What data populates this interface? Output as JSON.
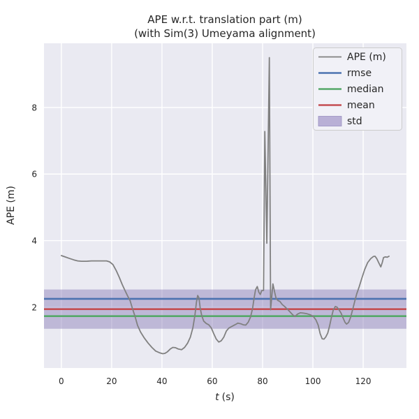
{
  "chart_data": {
    "type": "line",
    "title_line1": "APE w.r.t. translation part (m)",
    "title_line2": "(with Sim(3) Umeyama alignment)",
    "xlabel": "t (s)",
    "xlabel_parts": {
      "variable": "t",
      "unit": "(s)"
    },
    "ylabel": "APE (m)",
    "xlim": [
      -6.9,
      137.2
    ],
    "ylim": [
      0.17,
      9.93
    ],
    "x_ticks": [
      0,
      20,
      40,
      60,
      80,
      100,
      120
    ],
    "y_ticks": [
      2,
      4,
      6,
      8
    ],
    "grid": true,
    "legend_position": "upper right",
    "legend": [
      {
        "label": "APE (m)",
        "type": "line",
        "color": "#808080"
      },
      {
        "label": "rmse",
        "type": "line",
        "color": "#4c72b0"
      },
      {
        "label": "median",
        "type": "line",
        "color": "#55a868"
      },
      {
        "label": "mean",
        "type": "line",
        "color": "#c44e52"
      },
      {
        "label": "std",
        "type": "patch",
        "color": "#b9b0d6"
      }
    ],
    "stats": {
      "rmse": 2.25,
      "mean": 1.94,
      "median": 1.73,
      "std": 0.59
    },
    "series": [
      {
        "name": "APE (m)",
        "color": "#808080",
        "points": [
          [
            0,
            3.55
          ],
          [
            1.5,
            3.51
          ],
          [
            3,
            3.47
          ],
          [
            5,
            3.42
          ],
          [
            6.5,
            3.39
          ],
          [
            8,
            3.38
          ],
          [
            10,
            3.38
          ],
          [
            12,
            3.39
          ],
          [
            14,
            3.39
          ],
          [
            16,
            3.39
          ],
          [
            18,
            3.39
          ],
          [
            19.2,
            3.36
          ],
          [
            20.5,
            3.28
          ],
          [
            21.8,
            3.1
          ],
          [
            23,
            2.9
          ],
          [
            24.2,
            2.68
          ],
          [
            25.3,
            2.5
          ],
          [
            26.4,
            2.33
          ],
          [
            27.3,
            2.2
          ],
          [
            28.3,
            1.95
          ],
          [
            29.3,
            1.72
          ],
          [
            30.3,
            1.45
          ],
          [
            31.5,
            1.25
          ],
          [
            33,
            1.07
          ],
          [
            34.5,
            0.92
          ],
          [
            36,
            0.79
          ],
          [
            37.5,
            0.68
          ],
          [
            39,
            0.63
          ],
          [
            40.3,
            0.6
          ],
          [
            41.2,
            0.61
          ],
          [
            42.2,
            0.66
          ],
          [
            43.3,
            0.74
          ],
          [
            44.3,
            0.79
          ],
          [
            45.4,
            0.78
          ],
          [
            46.5,
            0.74
          ],
          [
            47.8,
            0.72
          ],
          [
            49,
            0.79
          ],
          [
            50.2,
            0.92
          ],
          [
            51.3,
            1.1
          ],
          [
            52.3,
            1.38
          ],
          [
            53.1,
            1.75
          ],
          [
            53.7,
            2.15
          ],
          [
            54.2,
            2.35
          ],
          [
            54.7,
            2.28
          ],
          [
            55.2,
            1.97
          ],
          [
            55.8,
            1.75
          ],
          [
            56.6,
            1.58
          ],
          [
            57.6,
            1.51
          ],
          [
            58.6,
            1.47
          ],
          [
            59.6,
            1.38
          ],
          [
            60.6,
            1.2
          ],
          [
            61.6,
            1.04
          ],
          [
            62.6,
            0.95
          ],
          [
            63.6,
            0.99
          ],
          [
            64.6,
            1.1
          ],
          [
            65.6,
            1.28
          ],
          [
            66.6,
            1.37
          ],
          [
            67.8,
            1.42
          ],
          [
            69,
            1.47
          ],
          [
            70.2,
            1.52
          ],
          [
            71.3,
            1.5
          ],
          [
            72.3,
            1.47
          ],
          [
            73.3,
            1.46
          ],
          [
            74.3,
            1.55
          ],
          [
            75.2,
            1.7
          ],
          [
            76,
            1.95
          ],
          [
            76.6,
            2.25
          ],
          [
            77.2,
            2.52
          ],
          [
            77.9,
            2.62
          ],
          [
            78.5,
            2.45
          ],
          [
            79.1,
            2.38
          ],
          [
            79.7,
            2.5
          ],
          [
            80.4,
            2.5
          ],
          [
            80.9,
            7.28
          ],
          [
            81.7,
            3.92
          ],
          [
            82.7,
            9.5
          ],
          [
            83.2,
            1.92
          ],
          [
            84.1,
            2.7
          ],
          [
            84.8,
            2.45
          ],
          [
            85.4,
            2.26
          ],
          [
            86.1,
            2.2
          ],
          [
            86.9,
            2.17
          ],
          [
            87.8,
            2.08
          ],
          [
            88.9,
            2.01
          ],
          [
            90,
            1.93
          ],
          [
            91,
            1.85
          ],
          [
            92,
            1.77
          ],
          [
            92.9,
            1.72
          ],
          [
            93.9,
            1.79
          ],
          [
            95,
            1.83
          ],
          [
            96.3,
            1.82
          ],
          [
            97.7,
            1.8
          ],
          [
            99,
            1.77
          ],
          [
            100.2,
            1.72
          ],
          [
            101.2,
            1.62
          ],
          [
            102.1,
            1.46
          ],
          [
            102.9,
            1.2
          ],
          [
            103.7,
            1.05
          ],
          [
            104.4,
            1.04
          ],
          [
            105.1,
            1.1
          ],
          [
            105.9,
            1.22
          ],
          [
            106.6,
            1.42
          ],
          [
            107.4,
            1.7
          ],
          [
            108.1,
            1.91
          ],
          [
            108.9,
            2.02
          ],
          [
            109.6,
            2.0
          ],
          [
            110.4,
            1.92
          ],
          [
            111.2,
            1.82
          ],
          [
            112,
            1.68
          ],
          [
            112.8,
            1.54
          ],
          [
            113.4,
            1.49
          ],
          [
            114.2,
            1.54
          ],
          [
            115,
            1.69
          ],
          [
            115.8,
            1.92
          ],
          [
            116.6,
            2.16
          ],
          [
            117.4,
            2.39
          ],
          [
            118.4,
            2.61
          ],
          [
            119.5,
            2.88
          ],
          [
            120.6,
            3.13
          ],
          [
            121.8,
            3.34
          ],
          [
            123,
            3.46
          ],
          [
            124,
            3.52
          ],
          [
            124.7,
            3.53
          ],
          [
            125.4,
            3.46
          ],
          [
            126.2,
            3.33
          ],
          [
            127,
            3.21
          ],
          [
            127.6,
            3.34
          ],
          [
            128.1,
            3.49
          ],
          [
            128.8,
            3.51
          ],
          [
            129.6,
            3.5
          ],
          [
            130.3,
            3.53
          ]
        ]
      }
    ]
  },
  "colors": {
    "background": "#ffffff",
    "plot_background": "#eaeaf2",
    "grid": "#ffffff",
    "ape_line": "#808080",
    "rmse": "#4c72b0",
    "median": "#55a868",
    "mean": "#c44e52",
    "std_band": "#8172b2",
    "std_band_opacity": 0.42,
    "std_legend_swatch": "#b9b0d6",
    "std_legend_border": "#9990c0",
    "text": "#262626",
    "legend_background": "#f1f1f7",
    "legend_border": "#cccccc"
  }
}
